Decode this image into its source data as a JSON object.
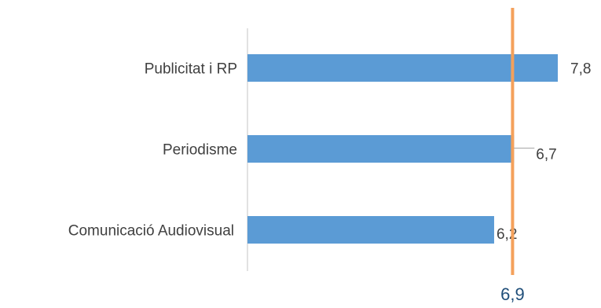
{
  "chart_data": {
    "type": "bar",
    "orientation": "horizontal",
    "categories": [
      "Publicitat i RP",
      "Periodisme",
      "Comunicació Audiovisual"
    ],
    "values": [
      7.8,
      6.7,
      6.2
    ],
    "value_labels": [
      "7,8",
      "6,7",
      "6,2"
    ],
    "reference_line": {
      "value": 6.9,
      "label": "6,9"
    },
    "title": "",
    "xlabel": "",
    "ylabel": "",
    "xlim": [
      0,
      10
    ],
    "grid": false,
    "legend": "none"
  },
  "colors": {
    "bar": "#5b9bd5",
    "reference_line": "#f4a15b",
    "reference_label": "#1f4e79",
    "axis": "#d9d9d9",
    "text": "#404040",
    "leader": "#a6a6a6"
  }
}
